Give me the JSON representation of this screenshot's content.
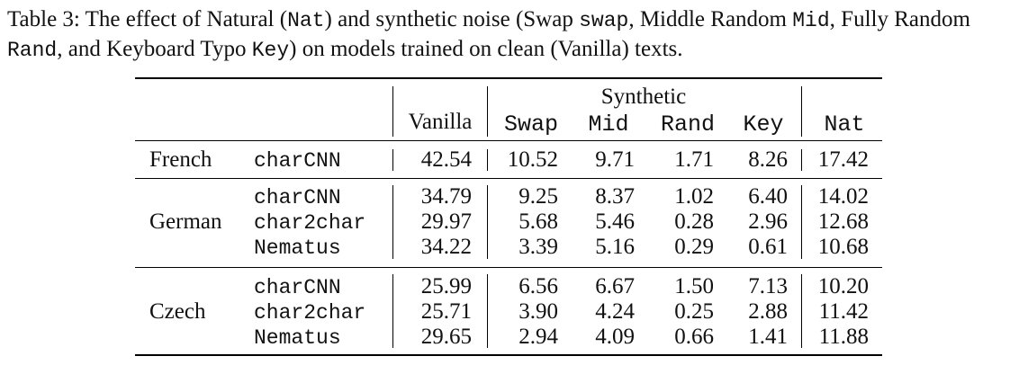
{
  "caption": {
    "prefix": "Table 3: The effect of Natural (",
    "nat": "Nat",
    "mid1": ") and synthetic noise (Swap ",
    "swap": "swap",
    "mid2": ", Middle Random ",
    "mid": "Mid",
    "mid3": ", Fully Random ",
    "rand": "Rand",
    "mid4": ", and Keyboard Typo ",
    "key": "Key",
    "suffix": ") on models trained on clean (Vanilla) texts."
  },
  "table": {
    "group_header": "Synthetic",
    "columns": [
      "Vanilla",
      "Swap",
      "Mid",
      "Rand",
      "Key",
      "Nat"
    ],
    "groups": [
      {
        "language": "French",
        "rows": [
          {
            "model": "charCNN",
            "values": [
              "42.54",
              "10.52",
              "9.71",
              "1.71",
              "8.26",
              "17.42"
            ]
          }
        ]
      },
      {
        "language": "German",
        "rows": [
          {
            "model": "charCNN",
            "values": [
              "34.79",
              "9.25",
              "8.37",
              "1.02",
              "6.40",
              "14.02"
            ]
          },
          {
            "model": "char2char",
            "values": [
              "29.97",
              "5.68",
              "5.46",
              "0.28",
              "2.96",
              "12.68"
            ]
          },
          {
            "model": "Nematus",
            "values": [
              "34.22",
              "3.39",
              "5.16",
              "0.29",
              "0.61",
              "10.68"
            ]
          }
        ]
      },
      {
        "language": "Czech",
        "rows": [
          {
            "model": "charCNN",
            "values": [
              "25.99",
              "6.56",
              "6.67",
              "1.50",
              "7.13",
              "10.20"
            ]
          },
          {
            "model": "char2char",
            "values": [
              "25.71",
              "3.90",
              "4.24",
              "0.25",
              "2.88",
              "11.42"
            ]
          },
          {
            "model": "Nematus",
            "values": [
              "29.65",
              "2.94",
              "4.09",
              "0.66",
              "1.41",
              "11.88"
            ]
          }
        ]
      }
    ]
  }
}
